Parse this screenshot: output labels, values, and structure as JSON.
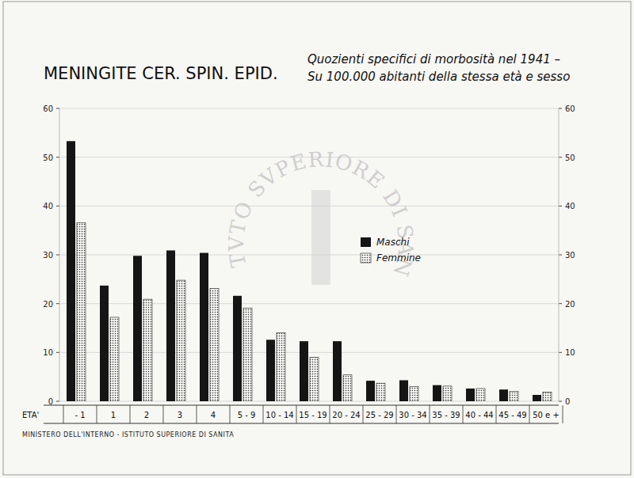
{
  "chart_data": {
    "type": "bar",
    "title": "MENINGITE CER. SPIN. EPID.",
    "subtitle": [
      "Quozienti specifici di morbosità nel 1941 –",
      "Su 100.000 abitanti della stessa età e sesso"
    ],
    "x_label": "ETA'",
    "footer": "MINISTERO DELL'INTERNO - ISTITUTO SUPERIORE DI SANITA",
    "watermark": "ISTITVTO SVPERIORE DI SANITA",
    "categories": [
      "- 1",
      "1",
      "2",
      "3",
      "4",
      "5 - 9",
      "10 - 14",
      "15 - 19",
      "20 - 24",
      "25 - 29",
      "30 - 34",
      "35 - 39",
      "40 - 44",
      "45 - 49",
      "50 e +"
    ],
    "series": [
      {
        "name": "Maschi",
        "color": "#151515",
        "values": [
          53.3,
          23.7,
          29.8,
          30.9,
          30.4,
          21.6,
          12.6,
          12.3,
          12.3,
          4.2,
          4.3,
          3.3,
          2.6,
          2.4,
          1.3
        ]
      },
      {
        "name": "Femmine",
        "color": "#f4f4f2",
        "values": [
          36.6,
          17.2,
          20.9,
          24.8,
          23.1,
          19.1,
          14.0,
          9.0,
          5.4,
          3.7,
          3.0,
          3.1,
          2.6,
          2.0,
          1.9
        ]
      }
    ],
    "ylim": [
      0,
      60
    ],
    "yticks": [
      0,
      10,
      20,
      30,
      40,
      50,
      60
    ],
    "y2lim": [
      0,
      60
    ],
    "y2ticks": [
      0,
      10,
      20,
      30,
      40,
      50,
      60
    ],
    "grid": true,
    "legend": "center"
  }
}
